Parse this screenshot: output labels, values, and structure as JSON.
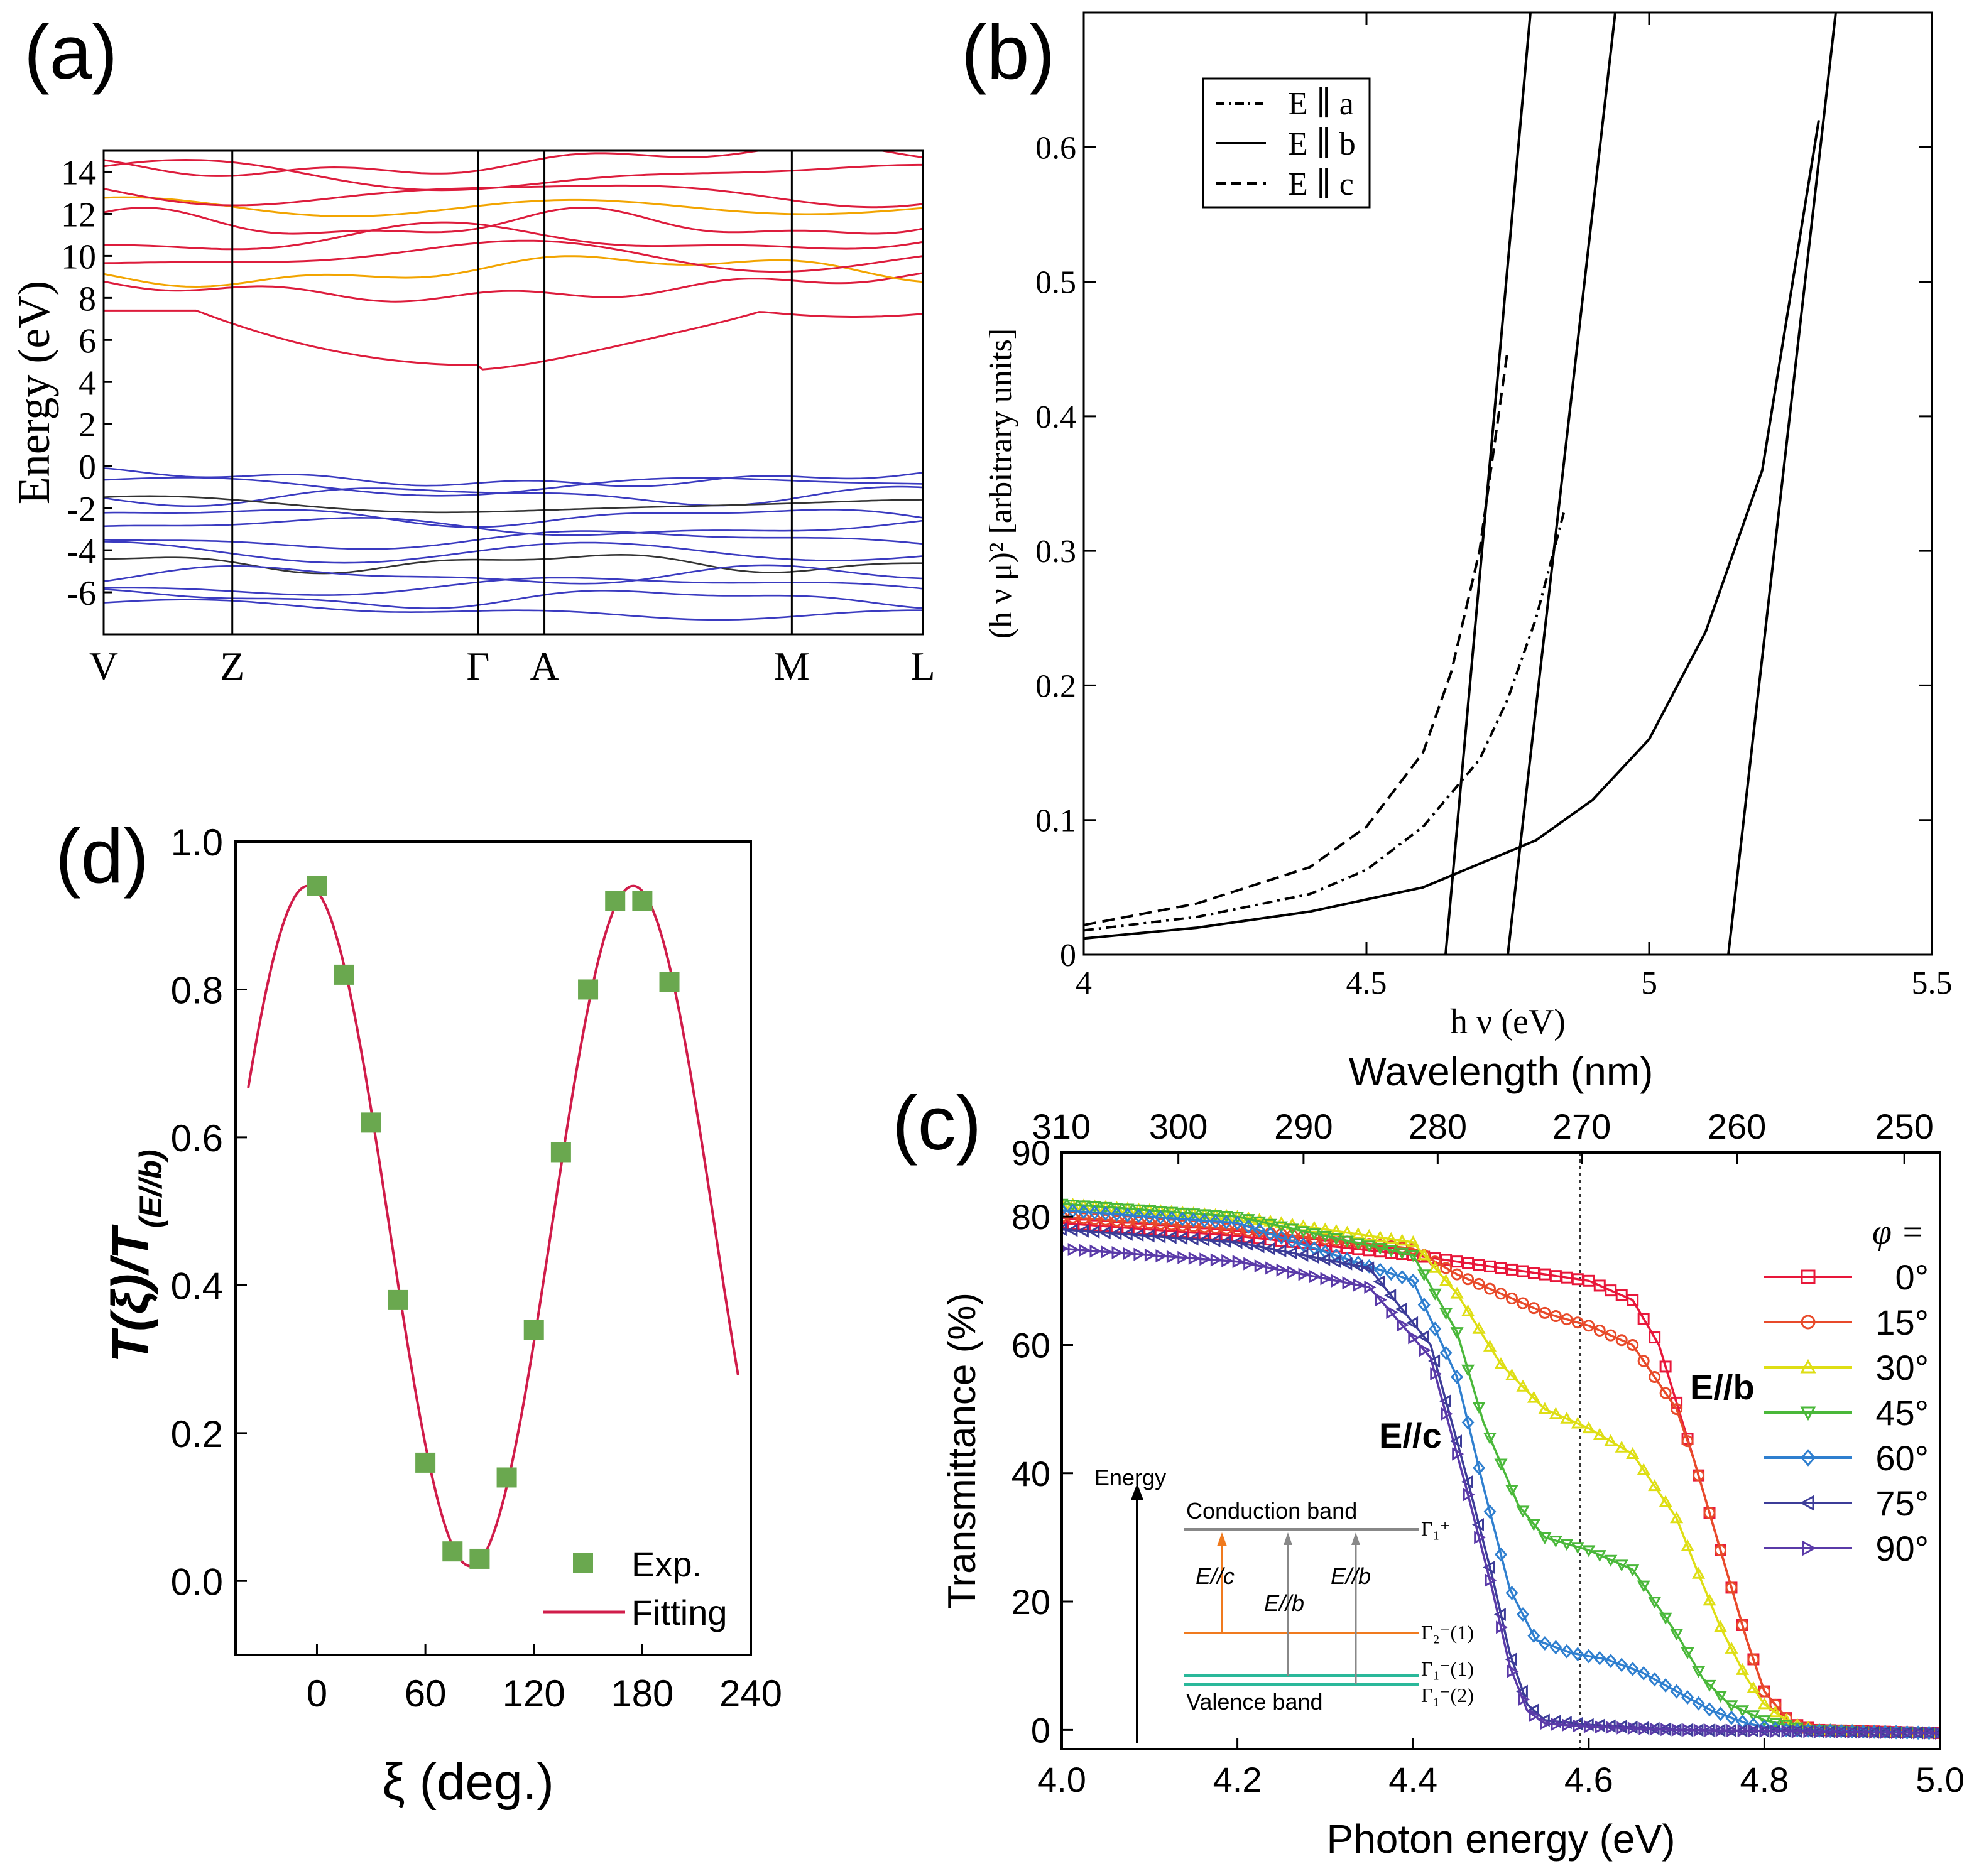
{
  "colors": {
    "conduction": "#dd1c3c",
    "conduction_alt": "#f2a400",
    "valence": "#3a3ac0",
    "valence_alt": "#1f9fb5",
    "marker_green": "#6aa84f",
    "fit_red": "#d01c4a",
    "c_series": [
      "#e8173a",
      "#e84a2a",
      "#dede14",
      "#4ab83a",
      "#2f7fcf",
      "#3c3c98",
      "#5a3aa8"
    ],
    "inset_orange": "#f07a1e",
    "inset_teal": "#2ab89a",
    "inset_gray": "#888888"
  },
  "chart_data": [
    {
      "panel": "(a)",
      "type": "line",
      "ylabel": "Energy (eV)",
      "ylim": [
        -8,
        15
      ],
      "yticks": [
        "14",
        "12",
        "10",
        "8",
        "6",
        "4",
        "2",
        "0",
        "-2",
        "-4",
        "-6"
      ],
      "ytick_values": [
        14,
        12,
        10,
        8,
        6,
        4,
        2,
        0,
        -2,
        -4,
        -6
      ],
      "kpoints": [
        "V",
        "Z",
        "Γ",
        "A",
        "M",
        "L"
      ],
      "kpoint_positions": [
        0,
        0.157,
        0.457,
        0.538,
        0.84,
        1.0
      ],
      "conduction_band_min_eV": 4.8,
      "valence_band_max_eV": -0.1,
      "grid": false
    },
    {
      "panel": "(b)",
      "type": "line",
      "xlabel": "h ν (eV)",
      "ylabel": "(h ν μ)² [arbitrary units]",
      "xlim": [
        4,
        5.5
      ],
      "ylim": [
        0,
        0.7
      ],
      "xticks": [
        "4",
        "4.5",
        "5",
        "5.5"
      ],
      "xtick_values": [
        4,
        4.5,
        5,
        5.5
      ],
      "yticks": [
        "0",
        "0.1",
        "0.2",
        "0.3",
        "0.4",
        "0.5",
        "0.6"
      ],
      "ytick_values": [
        0,
        0.1,
        0.2,
        0.3,
        0.4,
        0.5,
        0.6
      ],
      "legend": [
        "E ∥ a",
        "E ∥ b",
        "E ∥ c"
      ],
      "legend_position": "top-left",
      "series": [
        {
          "name": "E ∥ a",
          "style": "dash-dot",
          "x": [
            4.0,
            4.2,
            4.4,
            4.5,
            4.6,
            4.7,
            4.75,
            4.8,
            4.85
          ],
          "y": [
            0.018,
            0.028,
            0.045,
            0.063,
            0.095,
            0.145,
            0.19,
            0.25,
            0.33
          ]
        },
        {
          "name": "E ∥ b",
          "style": "solid",
          "x": [
            4.0,
            4.2,
            4.4,
            4.6,
            4.8,
            4.9,
            5.0,
            5.1,
            5.2,
            5.3
          ],
          "y": [
            0.012,
            0.02,
            0.032,
            0.05,
            0.085,
            0.115,
            0.16,
            0.24,
            0.36,
            0.62
          ]
        },
        {
          "name": "E ∥ c",
          "style": "dash",
          "x": [
            4.0,
            4.2,
            4.4,
            4.5,
            4.6,
            4.65,
            4.7,
            4.75
          ],
          "y": [
            0.022,
            0.038,
            0.065,
            0.095,
            0.15,
            0.21,
            0.3,
            0.45
          ]
        }
      ],
      "tangent_lines": [
        {
          "x0": 4.64,
          "x1": 4.79,
          "y0": 0,
          "y1": 0.7
        },
        {
          "x0": 4.75,
          "x1": 4.94,
          "y0": 0,
          "y1": 0.7
        },
        {
          "x0": 5.14,
          "x1": 5.33,
          "y0": 0,
          "y1": 0.7
        }
      ]
    },
    {
      "panel": "(c)",
      "type": "line",
      "xlabel": "Photon energy (eV)",
      "x2label": "Wavelength (nm)",
      "ylabel": "Transmittance (%)",
      "xlim": [
        4.0,
        5.0
      ],
      "ylim": [
        -3,
        90
      ],
      "xticks": [
        "4.0",
        "4.2",
        "4.4",
        "4.6",
        "4.8",
        "5.0"
      ],
      "xtick_values": [
        4.0,
        4.2,
        4.4,
        4.6,
        4.8,
        5.0
      ],
      "x2ticks": [
        "310",
        "300",
        "290",
        "280",
        "270",
        "260",
        "250"
      ],
      "x2tick_values": [
        310,
        300,
        290,
        280,
        270,
        260,
        250
      ],
      "yticks": [
        "0",
        "20",
        "40",
        "60",
        "80",
        "90"
      ],
      "ytick_values": [
        0,
        20,
        40,
        60,
        80,
        90
      ],
      "dotted_line_x": 4.59,
      "legend_title": "φ =",
      "legend_position": "right",
      "annotations": [
        "E//b",
        "E//c"
      ],
      "series": [
        {
          "name": "0°",
          "marker": "square",
          "x": [
            4.0,
            4.2,
            4.4,
            4.45,
            4.5,
            4.55,
            4.6,
            4.65,
            4.68,
            4.72,
            4.75,
            4.78,
            4.8,
            4.83,
            4.86,
            5.0
          ],
          "y": [
            79,
            77,
            74,
            73,
            72,
            71,
            70,
            67,
            60,
            42,
            28,
            14,
            6,
            1,
            0,
            -0.5
          ]
        },
        {
          "name": "15°",
          "marker": "circle",
          "x": [
            4.0,
            4.2,
            4.4,
            4.45,
            4.5,
            4.55,
            4.6,
            4.65,
            4.7,
            4.72,
            4.75,
            4.78,
            4.8,
            4.83,
            4.86,
            5.0
          ],
          "y": [
            80,
            78,
            75,
            71,
            68,
            65,
            63,
            60,
            50,
            42,
            28,
            14,
            6,
            1,
            0,
            -0.5
          ]
        },
        {
          "name": "30°",
          "marker": "triangle-up",
          "x": [
            4.0,
            4.2,
            4.4,
            4.45,
            4.5,
            4.55,
            4.6,
            4.65,
            4.7,
            4.72,
            4.75,
            4.78,
            4.8,
            4.83,
            4.86,
            5.0
          ],
          "y": [
            82,
            80,
            76,
            68,
            57,
            50,
            47,
            43,
            33,
            26,
            16,
            8,
            4,
            1,
            0,
            -0.5
          ]
        },
        {
          "name": "45°",
          "marker": "triangle-down",
          "x": [
            4.0,
            4.2,
            4.4,
            4.45,
            4.48,
            4.52,
            4.55,
            4.6,
            4.65,
            4.7,
            4.73,
            4.76,
            4.8,
            4.85,
            5.0
          ],
          "y": [
            82,
            80,
            74,
            62,
            48,
            35,
            30,
            28,
            25,
            15,
            8,
            4,
            1.5,
            0,
            -0.5
          ]
        },
        {
          "name": "60°",
          "marker": "diamond",
          "x": [
            4.0,
            4.2,
            4.4,
            4.45,
            4.48,
            4.51,
            4.54,
            4.58,
            4.62,
            4.66,
            4.7,
            4.74,
            4.78,
            4.82,
            5.0
          ],
          "y": [
            81,
            79,
            70,
            55,
            38,
            22,
            14,
            12,
            11,
            9,
            6,
            3,
            1,
            0,
            -0.5
          ]
        },
        {
          "name": "75°",
          "marker": "triangle-left",
          "x": [
            4.0,
            4.2,
            4.35,
            4.42,
            4.46,
            4.49,
            4.51,
            4.53,
            4.55,
            4.6,
            4.7,
            5.0
          ],
          "y": [
            78,
            76,
            72,
            60,
            40,
            24,
            12,
            4,
            1.5,
            0.8,
            0,
            -0.5
          ]
        },
        {
          "name": "90°",
          "marker": "triangle-right",
          "x": [
            4.0,
            4.2,
            4.35,
            4.42,
            4.46,
            4.49,
            4.51,
            4.53,
            4.55,
            4.6,
            4.7,
            5.0
          ],
          "y": [
            75,
            73,
            69,
            58,
            38,
            22,
            10,
            3,
            1,
            0.5,
            0,
            -0.5
          ]
        }
      ],
      "inset": {
        "ylabel": "Energy",
        "conduction_label": "Conduction band",
        "valence_label": "Valence band",
        "arrows": [
          "E//c",
          "E//b",
          "E//b"
        ],
        "levels": [
          "Γ₁⁺",
          "Γ₂⁻(1)",
          "Γ₁⁻(1)",
          "Γ₁⁻(2)"
        ]
      }
    },
    {
      "panel": "(d)",
      "type": "scatter",
      "xlabel": "ξ (deg.)",
      "ylabel_main": "T(ξ)/T",
      "ylabel_sub": "(E//b)",
      "xlim": [
        -45,
        240
      ],
      "ylim": [
        -0.1,
        1.0
      ],
      "xticks": [
        "0",
        "60",
        "120",
        "180",
        "240"
      ],
      "xtick_values": [
        0,
        60,
        120,
        180,
        240
      ],
      "yticks": [
        "0.0",
        "0.2",
        "0.4",
        "0.6",
        "0.8",
        "1.0"
      ],
      "ytick_values": [
        0.0,
        0.2,
        0.4,
        0.6,
        0.8,
        1.0
      ],
      "legend": [
        "Exp.",
        "Fitting"
      ],
      "legend_position": "bottom-right",
      "series": [
        {
          "name": "Exp.",
          "type": "scatter",
          "x": [
            0,
            15,
            30,
            45,
            60,
            75,
            90,
            105,
            120,
            135,
            150,
            165,
            180,
            195
          ],
          "y": [
            0.94,
            0.82,
            0.62,
            0.38,
            0.16,
            0.04,
            0.03,
            0.14,
            0.34,
            0.58,
            0.8,
            0.92,
            0.92,
            0.81
          ]
        },
        {
          "name": "Fitting",
          "type": "line",
          "model": {
            "A": 0.46,
            "C": 0.48,
            "period_deg": 180,
            "peak_deg": -5
          }
        }
      ]
    }
  ]
}
